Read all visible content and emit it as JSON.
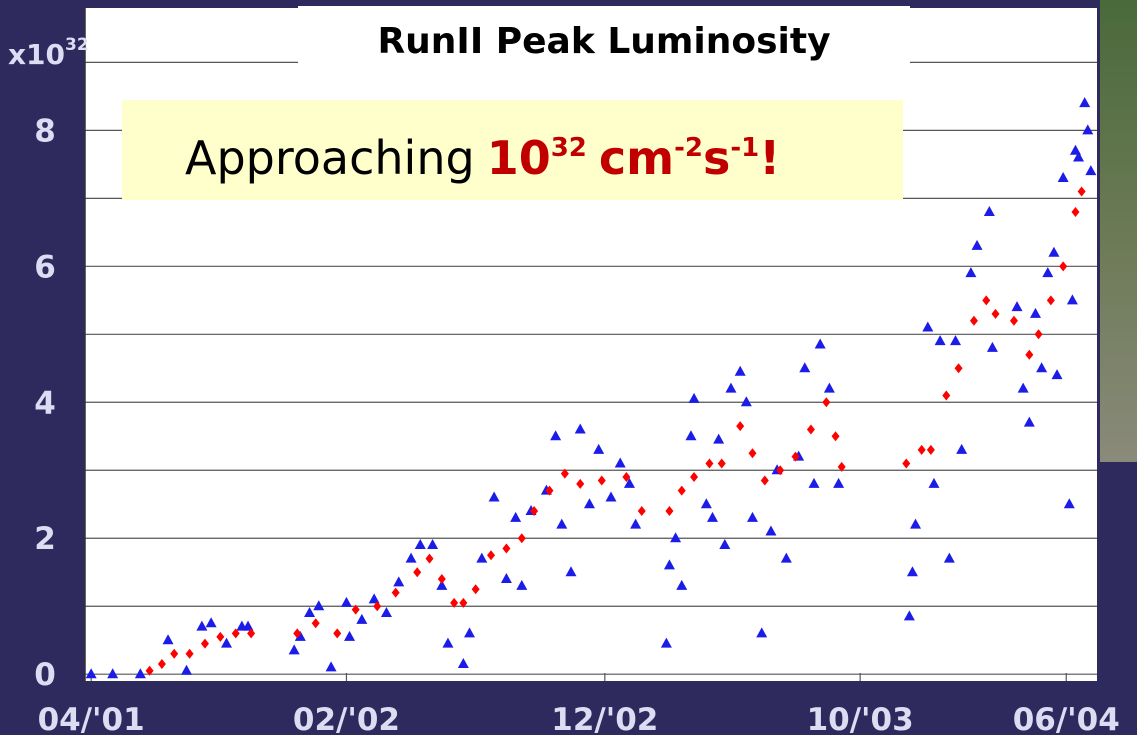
{
  "chart_data": {
    "type": "scatter",
    "title": "RunII Peak Luminosity",
    "y_unit": {
      "base": "x10",
      "exponent": "32"
    },
    "annotation": {
      "prefix": "Approaching",
      "base": "10",
      "exponent": "32",
      "unit1": "cm",
      "unit1_exp": "-2",
      "unit2": "s",
      "unit2_exp": "-1",
      "suffix": "!"
    },
    "xlim": [
      2001.23,
      2004.52
    ],
    "xticks": [
      {
        "value": 2001.25,
        "label": "04/'01"
      },
      {
        "value": 2002.08,
        "label": "02/'02"
      },
      {
        "value": 2002.92,
        "label": "12/'02"
      },
      {
        "value": 2003.75,
        "label": "10/'03"
      },
      {
        "value": 2004.42,
        "label": "06/'04"
      }
    ],
    "ylim": [
      -0.1,
      9.8
    ],
    "yticks": [
      0,
      2,
      4,
      6,
      8
    ],
    "minor_yticks": [
      1,
      3,
      5,
      7,
      9
    ],
    "grid": true,
    "series": [
      {
        "marker": "triangle",
        "color": "#1c1ce8",
        "x": [
          2001.25,
          2001.32,
          2001.41,
          2001.5,
          2001.56,
          2001.61,
          2001.64,
          2001.69,
          2001.74,
          2001.76,
          2001.91,
          2001.93,
          2001.96,
          2001.99,
          2002.03,
          2002.08,
          2002.09,
          2002.13,
          2002.17,
          2002.21,
          2002.25,
          2002.29,
          2002.32,
          2002.36,
          2002.39,
          2002.41,
          2002.46,
          2002.48,
          2002.52,
          2002.56,
          2002.6,
          2002.63,
          2002.65,
          2002.68,
          2002.73,
          2002.76,
          2002.78,
          2002.81,
          2002.84,
          2002.87,
          2002.9,
          2002.94,
          2002.97,
          2003.0,
          2003.02,
          2003.12,
          2003.13,
          2003.15,
          2003.17,
          2003.2,
          2003.21,
          2003.25,
          2003.27,
          2003.29,
          2003.31,
          2003.33,
          2003.36,
          2003.38,
          2003.4,
          2003.43,
          2003.46,
          2003.48,
          2003.51,
          2003.55,
          2003.57,
          2003.6,
          2003.62,
          2003.65,
          2003.68,
          2003.91,
          2003.92,
          2003.93,
          2003.97,
          2003.99,
          2004.01,
          2004.04,
          2004.06,
          2004.08,
          2004.11,
          2004.13,
          2004.17,
          2004.18,
          2004.26,
          2004.28,
          2004.3,
          2004.32,
          2004.34,
          2004.36,
          2004.38,
          2004.39,
          2004.41,
          2004.43,
          2004.44,
          2004.45,
          2004.46,
          2004.48,
          2004.49,
          2004.5
        ],
        "values": [
          0,
          0,
          0,
          0.5,
          0.05,
          0.7,
          0.75,
          0.45,
          0.7,
          0.7,
          0.35,
          0.55,
          0.9,
          1.0,
          0.1,
          1.05,
          0.55,
          0.8,
          1.1,
          0.9,
          1.35,
          1.7,
          1.9,
          1.9,
          1.3,
          0.45,
          0.15,
          0.6,
          1.7,
          2.6,
          1.4,
          2.3,
          1.3,
          2.4,
          2.7,
          3.5,
          2.2,
          1.5,
          3.6,
          2.5,
          3.3,
          2.6,
          3.1,
          2.8,
          2.2,
          0.45,
          1.6,
          2.0,
          1.3,
          3.5,
          4.05,
          2.5,
          2.3,
          3.45,
          1.9,
          4.2,
          4.45,
          4.0,
          2.3,
          0.6,
          2.1,
          3.0,
          1.7,
          3.2,
          4.5,
          2.8,
          4.85,
          4.2,
          2.8,
          0.85,
          1.5,
          2.2,
          5.1,
          2.8,
          4.9,
          1.7,
          4.9,
          3.3,
          5.9,
          6.3,
          6.8,
          4.8,
          5.4,
          4.2,
          3.7,
          5.3,
          4.5,
          5.9,
          6.2,
          4.4,
          7.3,
          2.5,
          5.5,
          7.7,
          7.6,
          8.4,
          8.0,
          7.4
        ]
      },
      {
        "marker": "diamond",
        "color": "#ff0000",
        "x": [
          2001.44,
          2001.48,
          2001.52,
          2001.55,
          2001.57,
          2001.62,
          2001.67,
          2001.72,
          2001.77,
          2001.85,
          2001.92,
          2001.98,
          2002.05,
          2002.11,
          2002.18,
          2002.24,
          2002.31,
          2002.35,
          2002.39,
          2002.43,
          2002.46,
          2002.5,
          2002.55,
          2002.6,
          2002.65,
          2002.69,
          2002.74,
          2002.79,
          2002.84,
          2002.91,
          2002.99,
          2003.04,
          2003.08,
          2003.13,
          2003.17,
          2003.21,
          2003.26,
          2003.3,
          2003.36,
          2003.4,
          2003.44,
          2003.49,
          2003.54,
          2003.59,
          2003.64,
          2003.67,
          2003.69,
          2003.8,
          2003.9,
          2003.95,
          2003.98,
          2004.03,
          2004.07,
          2004.12,
          2004.16,
          2004.19,
          2004.22,
          2004.25,
          2004.3,
          2004.33,
          2004.37,
          2004.41,
          2004.45,
          2004.47
        ],
        "values": [
          0.05,
          0.15,
          0.3,
          null,
          0.3,
          0.45,
          0.55,
          0.6,
          0.6,
          null,
          0.6,
          0.75,
          0.6,
          0.95,
          1.0,
          1.2,
          1.5,
          1.7,
          1.4,
          1.05,
          1.05,
          1.25,
          1.75,
          1.85,
          2.0,
          2.4,
          2.7,
          2.95,
          2.8,
          2.85,
          2.9,
          2.4,
          null,
          2.4,
          2.7,
          2.9,
          3.1,
          3.1,
          3.65,
          3.25,
          2.85,
          3.0,
          3.2,
          3.6,
          4.0,
          3.5,
          3.05,
          null,
          3.1,
          3.3,
          3.3,
          4.1,
          4.5,
          5.2,
          5.5,
          5.3,
          null,
          5.2,
          4.7,
          5.0,
          5.5,
          6.0,
          6.8,
          7.1
        ]
      }
    ]
  }
}
